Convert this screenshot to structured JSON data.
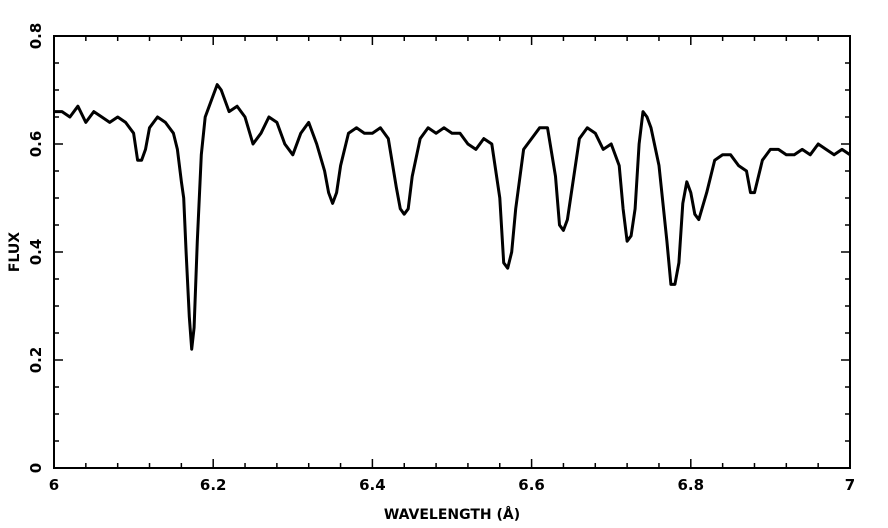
{
  "chart_data": {
    "type": "line",
    "title": "",
    "xlabel": "WAVELENGTH (Å)",
    "ylabel": "FLUX",
    "xlim": [
      6,
      7
    ],
    "ylim": [
      0,
      0.8
    ],
    "x_ticks": [
      6,
      6.2,
      6.4,
      6.6,
      6.8,
      7
    ],
    "x_tick_labels": [
      "6",
      "6.2",
      "6.4",
      "6.6",
      "6.8",
      "7"
    ],
    "y_ticks": [
      0,
      0.2,
      0.4,
      0.6,
      0.8
    ],
    "y_tick_labels": [
      "0",
      "0.2",
      "0.4",
      "0.6",
      "0.8"
    ],
    "grid": false,
    "line_color": "#000000",
    "series": [
      {
        "x": [
          6.0,
          6.01,
          6.02,
          6.03,
          6.04,
          6.05,
          6.06,
          6.07,
          6.08,
          6.09,
          6.1,
          6.105,
          6.11,
          6.115,
          6.12,
          6.13,
          6.14,
          6.15,
          6.155,
          6.16,
          6.163,
          6.166,
          6.17,
          6.173,
          6.176,
          6.18,
          6.185,
          6.19,
          6.195,
          6.2,
          6.205,
          6.21,
          6.22,
          6.23,
          6.24,
          6.25,
          6.26,
          6.27,
          6.28,
          6.29,
          6.3,
          6.31,
          6.32,
          6.33,
          6.34,
          6.345,
          6.35,
          6.355,
          6.36,
          6.37,
          6.38,
          6.39,
          6.4,
          6.41,
          6.42,
          6.43,
          6.435,
          6.44,
          6.445,
          6.45,
          6.46,
          6.47,
          6.48,
          6.49,
          6.5,
          6.51,
          6.52,
          6.53,
          6.54,
          6.55,
          6.56,
          6.565,
          6.57,
          6.575,
          6.58,
          6.59,
          6.6,
          6.61,
          6.62,
          6.63,
          6.635,
          6.64,
          6.645,
          6.65,
          6.66,
          6.67,
          6.68,
          6.69,
          6.7,
          6.71,
          6.715,
          6.72,
          6.725,
          6.73,
          6.735,
          6.74,
          6.745,
          6.75,
          6.76,
          6.77,
          6.775,
          6.78,
          6.785,
          6.79,
          6.795,
          6.8,
          6.805,
          6.81,
          6.82,
          6.83,
          6.84,
          6.85,
          6.86,
          6.87,
          6.875,
          6.88,
          6.89,
          6.9,
          6.91,
          6.92,
          6.93,
          6.94,
          6.95,
          6.96,
          6.97,
          6.98,
          6.99,
          7.0
        ],
        "y": [
          0.66,
          0.66,
          0.65,
          0.67,
          0.64,
          0.66,
          0.65,
          0.64,
          0.65,
          0.64,
          0.62,
          0.57,
          0.57,
          0.59,
          0.63,
          0.65,
          0.64,
          0.62,
          0.59,
          0.53,
          0.5,
          0.4,
          0.28,
          0.22,
          0.26,
          0.42,
          0.58,
          0.65,
          0.67,
          0.69,
          0.71,
          0.7,
          0.66,
          0.67,
          0.65,
          0.6,
          0.62,
          0.65,
          0.64,
          0.6,
          0.58,
          0.62,
          0.64,
          0.6,
          0.55,
          0.51,
          0.49,
          0.51,
          0.56,
          0.62,
          0.63,
          0.62,
          0.62,
          0.63,
          0.61,
          0.52,
          0.48,
          0.47,
          0.48,
          0.54,
          0.61,
          0.63,
          0.62,
          0.63,
          0.62,
          0.62,
          0.6,
          0.59,
          0.61,
          0.6,
          0.5,
          0.38,
          0.37,
          0.4,
          0.48,
          0.59,
          0.61,
          0.63,
          0.63,
          0.54,
          0.45,
          0.44,
          0.46,
          0.51,
          0.61,
          0.63,
          0.62,
          0.59,
          0.6,
          0.56,
          0.48,
          0.42,
          0.43,
          0.48,
          0.6,
          0.66,
          0.65,
          0.63,
          0.56,
          0.42,
          0.34,
          0.34,
          0.38,
          0.49,
          0.53,
          0.51,
          0.47,
          0.46,
          0.51,
          0.57,
          0.58,
          0.58,
          0.56,
          0.55,
          0.51,
          0.51,
          0.57,
          0.59,
          0.59,
          0.58,
          0.58,
          0.59,
          0.58,
          0.6,
          0.59,
          0.58,
          0.59,
          0.58
        ]
      }
    ]
  }
}
